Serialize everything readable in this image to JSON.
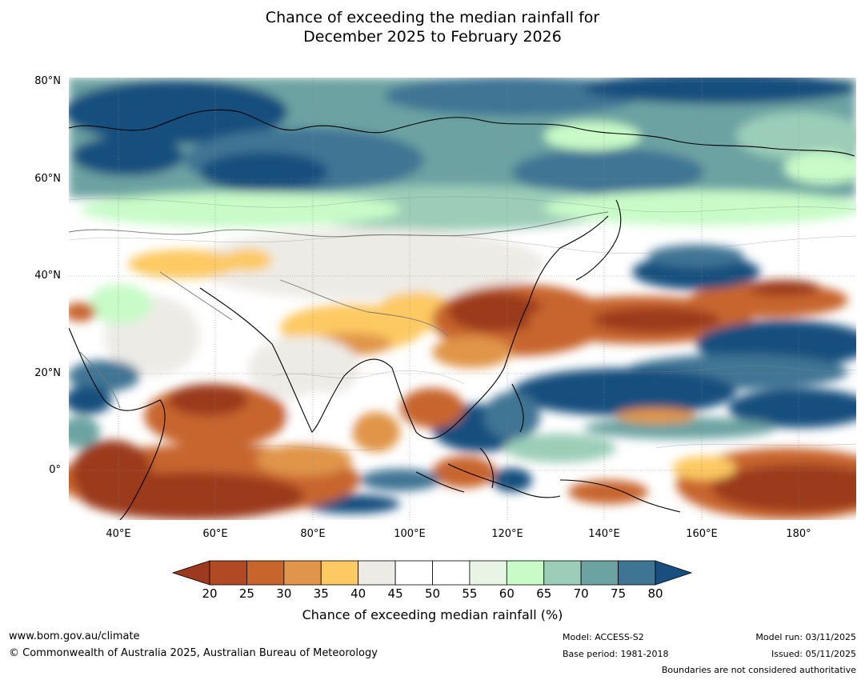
{
  "title": {
    "line1": "Chance of exceeding the median rainfall for",
    "line2": "December 2025 to February 2026"
  },
  "map": {
    "lat_labels": [
      "80°N",
      "60°N",
      "40°N",
      "20°N",
      "0°"
    ],
    "lon_labels": [
      "40°E",
      "60°E",
      "80°E",
      "100°E",
      "120°E",
      "140°E",
      "160°E",
      "180°"
    ]
  },
  "colorbar": {
    "title": "Chance of exceeding median rainfall (%)",
    "ticks": [
      "20",
      "25",
      "30",
      "35",
      "40",
      "45",
      "50",
      "55",
      "60",
      "65",
      "70",
      "75",
      "80"
    ],
    "colors": [
      "#9b3a1e",
      "#b14a24",
      "#c8652d",
      "#e0954a",
      "#fdc962",
      "#edebe6",
      "#ffffff",
      "#ffffff",
      "#e8f5e4",
      "#c8fbc8",
      "#9bcdb8",
      "#6ca3a2",
      "#3f7594",
      "#194f7e"
    ],
    "under_color": "#9b3a1e",
    "over_color": "#194f7e"
  },
  "footer": {
    "website": "www.bom.gov.au/climate",
    "copyright": "© Commonwealth of Australia 2025, Australian Bureau of Meteorology",
    "model": "Model: ACCESS-S2",
    "base_period": "Base period: 1981-2018",
    "model_run": "Model run: 03/11/2025",
    "issued": "Issued: 05/11/2025",
    "disclaimer": "Boundaries are not considered authoritative"
  }
}
